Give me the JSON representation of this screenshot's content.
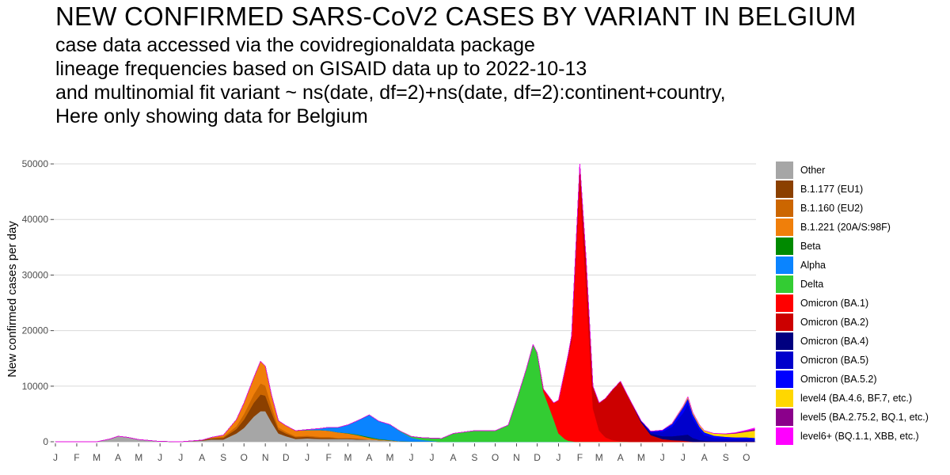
{
  "title": "NEW CONFIRMED SARS-CoV2 CASES BY VARIANT IN BELGIUM",
  "subtitle_lines": [
    "case data accessed via the covidregionaldata package",
    "lineage frequencies based on GISAID data up to 2022-10-13",
    "and multinomial fit variant ~ ns(date, df=2)+ns(date, df=2):continent+country,",
    "Here only showing data for Belgium"
  ],
  "chart_data": {
    "type": "area",
    "stacked": true,
    "ylabel": "New confirmed cases per day",
    "xlabel": "",
    "ylim": [
      0,
      53000
    ],
    "y_ticks": [
      0,
      10000,
      20000,
      30000,
      40000,
      50000
    ],
    "y_tick_labels": [
      "0",
      "10000",
      "20000",
      "30000",
      "40000",
      "50000"
    ],
    "x_range": [
      "2020-01-01",
      "2022-10-15"
    ],
    "x_ticks": [
      "2020-01-01",
      "2020-02-01",
      "2020-03-01",
      "2020-04-01",
      "2020-05-01",
      "2020-06-01",
      "2020-07-01",
      "2020-08-01",
      "2020-09-01",
      "2020-10-01",
      "2020-11-01",
      "2020-12-01",
      "2021-01-01",
      "2021-02-01",
      "2021-03-01",
      "2021-04-01",
      "2021-05-01",
      "2021-06-01",
      "2021-07-01",
      "2021-08-01",
      "2021-09-01",
      "2021-10-01",
      "2021-11-01",
      "2021-12-01",
      "2022-01-01",
      "2022-02-01",
      "2022-03-01",
      "2022-04-01",
      "2022-05-01",
      "2022-06-01",
      "2022-07-01",
      "2022-08-01",
      "2022-09-01",
      "2022-10-01"
    ],
    "x_tick_labels": [
      "J",
      "F",
      "M",
      "A",
      "M",
      "J",
      "J",
      "A",
      "S",
      "O",
      "N",
      "D",
      "J",
      "F",
      "M",
      "A",
      "M",
      "J",
      "J",
      "A",
      "S",
      "O",
      "N",
      "D",
      "J",
      "F",
      "M",
      "A",
      "M",
      "J",
      "J",
      "A",
      "S",
      "O"
    ],
    "grid": "horizontal",
    "legend_position": "right",
    "x": [
      "2020-01-01",
      "2020-03-01",
      "2020-03-20",
      "2020-04-01",
      "2020-04-15",
      "2020-05-01",
      "2020-06-01",
      "2020-07-01",
      "2020-08-01",
      "2020-08-15",
      "2020-09-01",
      "2020-09-20",
      "2020-10-01",
      "2020-10-15",
      "2020-10-25",
      "2020-11-01",
      "2020-11-10",
      "2020-11-20",
      "2020-12-01",
      "2020-12-15",
      "2021-01-01",
      "2021-01-20",
      "2021-02-01",
      "2021-02-15",
      "2021-03-01",
      "2021-03-15",
      "2021-04-01",
      "2021-04-15",
      "2021-05-01",
      "2021-05-15",
      "2021-06-01",
      "2021-06-15",
      "2021-07-01",
      "2021-07-15",
      "2021-08-01",
      "2021-09-01",
      "2021-10-01",
      "2021-10-20",
      "2021-11-01",
      "2021-11-15",
      "2021-11-25",
      "2021-12-01",
      "2021-12-10",
      "2021-12-25",
      "2022-01-01",
      "2022-01-10",
      "2022-01-15",
      "2022-01-20",
      "2022-01-25",
      "2022-02-01",
      "2022-02-10",
      "2022-02-20",
      "2022-03-01",
      "2022-03-10",
      "2022-03-20",
      "2022-04-01",
      "2022-04-15",
      "2022-05-01",
      "2022-05-15",
      "2022-06-01",
      "2022-06-15",
      "2022-07-01",
      "2022-07-08",
      "2022-07-15",
      "2022-07-25",
      "2022-08-01",
      "2022-08-15",
      "2022-09-01",
      "2022-09-15",
      "2022-10-01",
      "2022-10-13"
    ],
    "series": [
      {
        "name": "Other",
        "color": "#a6a6a6",
        "values": [
          0,
          0,
          500,
          1000,
          800,
          400,
          50,
          0,
          200,
          400,
          400,
          1500,
          2500,
          4500,
          5500,
          5500,
          3500,
          1500,
          1000,
          500,
          600,
          500,
          500,
          500,
          500,
          400,
          400,
          300,
          200,
          100,
          50,
          50,
          50,
          0,
          0,
          0,
          0,
          0,
          0,
          0,
          0,
          0,
          0,
          0,
          0,
          0,
          0,
          0,
          0,
          0,
          0,
          0,
          0,
          0,
          0,
          0,
          0,
          0,
          0,
          0,
          0,
          0,
          0,
          0,
          0,
          0,
          0,
          0,
          0,
          0,
          0
        ]
      },
      {
        "name": "B.1.177 (EU1)",
        "color": "#8b4000",
        "values": [
          0,
          0,
          0,
          0,
          0,
          0,
          0,
          0,
          100,
          200,
          300,
          800,
          1500,
          2500,
          3000,
          2800,
          1800,
          700,
          500,
          300,
          300,
          200,
          200,
          100,
          100,
          100,
          0,
          0,
          0,
          0,
          0,
          0,
          0,
          0,
          0,
          0,
          0,
          0,
          0,
          0,
          0,
          0,
          0,
          0,
          0,
          0,
          0,
          0,
          0,
          0,
          0,
          0,
          0,
          0,
          0,
          0,
          0,
          0,
          0,
          0,
          0,
          0,
          0,
          0,
          0,
          0,
          0,
          0,
          0,
          0,
          0
        ]
      },
      {
        "name": "B.1.160 (EU2)",
        "color": "#cc6600",
        "values": [
          0,
          0,
          0,
          0,
          0,
          0,
          0,
          0,
          0,
          100,
          200,
          500,
          1000,
          1500,
          2000,
          1800,
          1100,
          400,
          300,
          200,
          200,
          200,
          200,
          100,
          100,
          100,
          0,
          0,
          0,
          0,
          0,
          0,
          0,
          0,
          0,
          0,
          0,
          0,
          0,
          0,
          0,
          0,
          0,
          0,
          0,
          0,
          0,
          0,
          0,
          0,
          0,
          0,
          0,
          0,
          0,
          0,
          0,
          0,
          0,
          0,
          0,
          0,
          0,
          0,
          0,
          0,
          0,
          0,
          0,
          0,
          0
        ]
      },
      {
        "name": "B.1.221 (20A/S:98F)",
        "color": "#f07f0a",
        "values": [
          0,
          0,
          0,
          0,
          0,
          0,
          0,
          0,
          0,
          100,
          300,
          1200,
          2000,
          3000,
          4000,
          3500,
          2000,
          1200,
          1100,
          1000,
          1000,
          1200,
          1100,
          1000,
          800,
          600,
          300,
          100,
          50,
          0,
          0,
          0,
          0,
          0,
          0,
          0,
          0,
          0,
          0,
          0,
          0,
          0,
          0,
          0,
          0,
          0,
          0,
          0,
          0,
          0,
          0,
          0,
          0,
          0,
          0,
          0,
          0,
          0,
          0,
          0,
          0,
          0,
          0,
          0,
          0,
          0,
          0,
          0,
          0,
          0,
          0
        ]
      },
      {
        "name": "Beta",
        "color": "#008a00",
        "values": [
          0,
          0,
          0,
          0,
          0,
          0,
          0,
          0,
          0,
          0,
          0,
          0,
          0,
          0,
          0,
          0,
          0,
          0,
          0,
          0,
          0,
          0,
          0,
          0,
          50,
          100,
          150,
          100,
          50,
          0,
          0,
          0,
          0,
          0,
          0,
          0,
          0,
          0,
          0,
          0,
          0,
          0,
          0,
          0,
          0,
          0,
          0,
          0,
          0,
          0,
          0,
          0,
          0,
          0,
          0,
          0,
          0,
          0,
          0,
          0,
          0,
          0,
          0,
          0,
          0,
          0,
          0,
          0,
          0,
          0,
          0
        ]
      },
      {
        "name": "Alpha",
        "color": "#0a84ff",
        "values": [
          0,
          0,
          0,
          0,
          0,
          0,
          0,
          0,
          0,
          0,
          0,
          0,
          0,
          0,
          0,
          0,
          0,
          0,
          0,
          0,
          100,
          300,
          600,
          900,
          1500,
          2500,
          4000,
          3200,
          2800,
          1800,
          700,
          300,
          100,
          0,
          0,
          0,
          0,
          0,
          0,
          0,
          0,
          0,
          0,
          0,
          0,
          0,
          0,
          0,
          0,
          0,
          0,
          0,
          0,
          0,
          0,
          0,
          0,
          0,
          0,
          0,
          0,
          0,
          0,
          0,
          0,
          0,
          0,
          0,
          0,
          0,
          0
        ]
      },
      {
        "name": "Delta",
        "color": "#33cc33",
        "values": [
          0,
          0,
          0,
          0,
          0,
          0,
          0,
          0,
          0,
          0,
          0,
          0,
          0,
          0,
          0,
          0,
          0,
          0,
          0,
          0,
          0,
          0,
          0,
          0,
          0,
          0,
          0,
          0,
          0,
          100,
          200,
          400,
          500,
          600,
          1500,
          2000,
          2000,
          3000,
          7500,
          13000,
          17500,
          16000,
          9000,
          4000,
          1500,
          500,
          200,
          100,
          0,
          0,
          0,
          0,
          0,
          0,
          0,
          0,
          0,
          0,
          0,
          0,
          0,
          0,
          0,
          0,
          0,
          0,
          0,
          0,
          0,
          0,
          0
        ]
      },
      {
        "name": "Omicron (BA.1)",
        "color": "#ff0000",
        "values": [
          0,
          0,
          0,
          0,
          0,
          0,
          0,
          0,
          0,
          0,
          0,
          0,
          0,
          0,
          0,
          0,
          0,
          0,
          0,
          0,
          0,
          0,
          0,
          0,
          0,
          0,
          0,
          0,
          0,
          0,
          0,
          0,
          0,
          0,
          0,
          0,
          0,
          0,
          0,
          0,
          0,
          0,
          500,
          3000,
          6000,
          12000,
          15000,
          18000,
          30000,
          46000,
          28000,
          6000,
          2000,
          800,
          300,
          100,
          0,
          0,
          0,
          0,
          0,
          0,
          0,
          0,
          0,
          0,
          0,
          0,
          0,
          0,
          0
        ]
      },
      {
        "name": "Omicron (BA.2)",
        "color": "#cc0000",
        "values": [
          0,
          0,
          0,
          0,
          0,
          0,
          0,
          0,
          0,
          0,
          0,
          0,
          0,
          0,
          0,
          0,
          0,
          0,
          0,
          0,
          0,
          0,
          0,
          0,
          0,
          0,
          0,
          0,
          0,
          0,
          0,
          0,
          0,
          0,
          0,
          0,
          0,
          0,
          0,
          0,
          0,
          0,
          0,
          0,
          0,
          200,
          500,
          1000,
          2000,
          4000,
          5000,
          4000,
          5000,
          7000,
          9000,
          10800,
          7500,
          3500,
          1200,
          500,
          300,
          200,
          100,
          0,
          0,
          0,
          0,
          0,
          0,
          0,
          0
        ]
      },
      {
        "name": "Omicron (BA.4)",
        "color": "#000080",
        "values": [
          0,
          0,
          0,
          0,
          0,
          0,
          0,
          0,
          0,
          0,
          0,
          0,
          0,
          0,
          0,
          0,
          0,
          0,
          0,
          0,
          0,
          0,
          0,
          0,
          0,
          0,
          0,
          0,
          0,
          0,
          0,
          0,
          0,
          0,
          0,
          0,
          0,
          0,
          0,
          0,
          0,
          0,
          0,
          0,
          0,
          0,
          0,
          0,
          0,
          0,
          0,
          0,
          0,
          0,
          0,
          0,
          0,
          200,
          300,
          500,
          700,
          1000,
          1200,
          700,
          300,
          200,
          100,
          100,
          100,
          100,
          100
        ]
      },
      {
        "name": "Omicron (BA.5)",
        "color": "#0000cc",
        "values": [
          0,
          0,
          0,
          0,
          0,
          0,
          0,
          0,
          0,
          0,
          0,
          0,
          0,
          0,
          0,
          0,
          0,
          0,
          0,
          0,
          0,
          0,
          0,
          0,
          0,
          0,
          0,
          0,
          0,
          0,
          0,
          0,
          0,
          0,
          0,
          0,
          0,
          0,
          0,
          0,
          0,
          0,
          0,
          0,
          0,
          0,
          0,
          0,
          0,
          0,
          0,
          0,
          0,
          0,
          0,
          0,
          0,
          100,
          300,
          800,
          1700,
          4000,
          5500,
          3500,
          1800,
          1000,
          600,
          500,
          400,
          400,
          400
        ]
      },
      {
        "name": "Omicron (BA.5.2)",
        "color": "#0000ff",
        "values": [
          0,
          0,
          0,
          0,
          0,
          0,
          0,
          0,
          0,
          0,
          0,
          0,
          0,
          0,
          0,
          0,
          0,
          0,
          0,
          0,
          0,
          0,
          0,
          0,
          0,
          0,
          0,
          0,
          0,
          0,
          0,
          0,
          0,
          0,
          0,
          0,
          0,
          0,
          0,
          0,
          0,
          0,
          0,
          0,
          0,
          0,
          0,
          0,
          0,
          0,
          0,
          0,
          0,
          0,
          0,
          0,
          0,
          0,
          100,
          300,
          500,
          1000,
          1000,
          800,
          600,
          500,
          400,
          300,
          300,
          300,
          200
        ]
      },
      {
        "name": "level4 (BA.4.6, BF.7, etc.)",
        "color": "#ffd700",
        "values": [
          0,
          0,
          0,
          0,
          0,
          0,
          0,
          0,
          0,
          0,
          0,
          0,
          0,
          0,
          0,
          0,
          0,
          0,
          0,
          0,
          0,
          0,
          0,
          0,
          0,
          0,
          0,
          0,
          0,
          0,
          0,
          0,
          0,
          0,
          0,
          0,
          0,
          0,
          0,
          0,
          0,
          0,
          0,
          0,
          0,
          0,
          0,
          0,
          0,
          0,
          0,
          0,
          0,
          0,
          0,
          0,
          0,
          0,
          0,
          0,
          100,
          200,
          300,
          300,
          300,
          300,
          400,
          500,
          700,
          1000,
          1300
        ]
      },
      {
        "name": "level5 (BA.2.75.2, BQ.1, etc.)",
        "color": "#8b008b",
        "values": [
          0,
          0,
          0,
          0,
          0,
          0,
          0,
          0,
          0,
          0,
          0,
          0,
          0,
          0,
          0,
          0,
          0,
          0,
          0,
          0,
          0,
          0,
          0,
          0,
          0,
          0,
          0,
          0,
          0,
          0,
          0,
          0,
          0,
          0,
          0,
          0,
          0,
          0,
          0,
          0,
          0,
          0,
          0,
          0,
          0,
          0,
          0,
          0,
          0,
          0,
          0,
          0,
          0,
          0,
          0,
          0,
          0,
          0,
          0,
          0,
          0,
          0,
          0,
          0,
          0,
          0,
          0,
          50,
          100,
          200,
          300
        ]
      },
      {
        "name": "level6+ (BQ.1.1, XBB, etc.)",
        "color": "#ff00ff",
        "values": [
          0,
          0,
          0,
          0,
          0,
          0,
          0,
          0,
          0,
          0,
          0,
          0,
          0,
          0,
          0,
          0,
          0,
          0,
          0,
          0,
          0,
          0,
          0,
          0,
          0,
          0,
          0,
          0,
          0,
          0,
          0,
          0,
          0,
          0,
          0,
          0,
          0,
          0,
          0,
          0,
          0,
          0,
          0,
          0,
          0,
          0,
          0,
          0,
          0,
          0,
          0,
          0,
          0,
          0,
          0,
          0,
          0,
          0,
          0,
          0,
          0,
          0,
          0,
          0,
          0,
          0,
          0,
          0,
          50,
          100,
          200
        ]
      }
    ]
  }
}
